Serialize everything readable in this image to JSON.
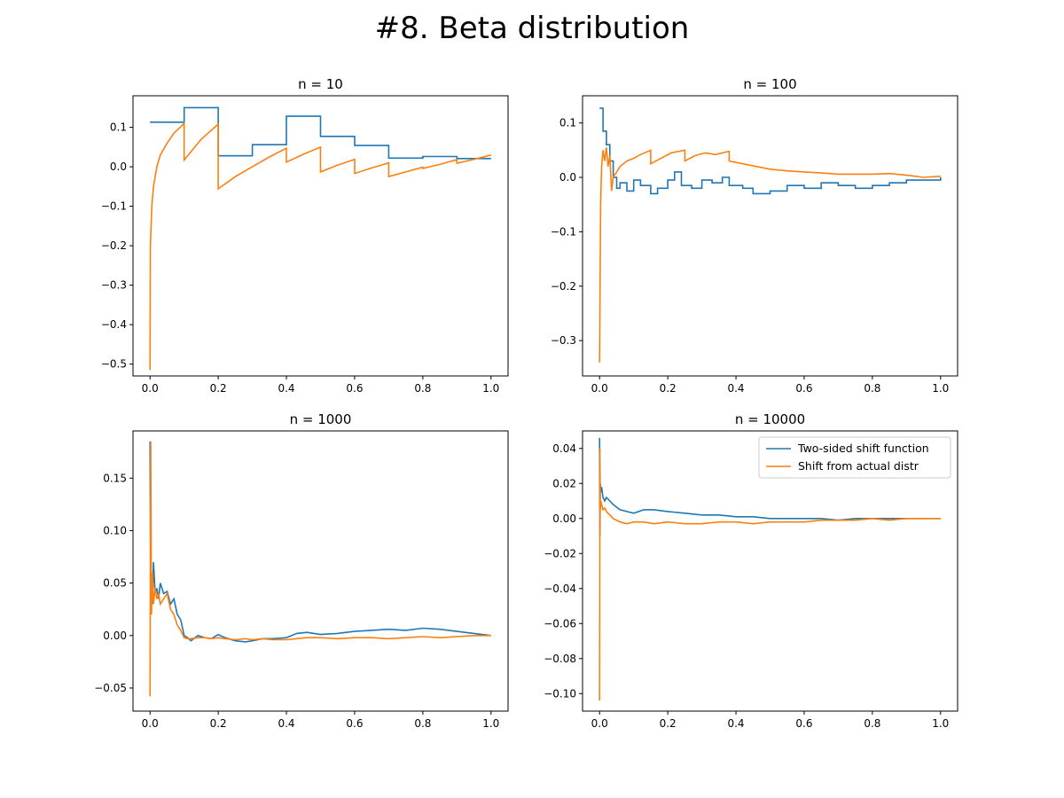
{
  "suptitle": "#8. Beta distribution",
  "colors": {
    "series1": "#1f77b4",
    "series2": "#ff7f0e"
  },
  "chart_data": [
    {
      "type": "line",
      "title": "n = 10",
      "xlim": [
        -0.05,
        1.05
      ],
      "ylim": [
        -0.53,
        0.18
      ],
      "xticks": [
        0,
        0.2,
        0.4,
        0.6,
        0.8,
        1.0
      ],
      "xtick_labels": [
        "0.0",
        "0.2",
        "0.4",
        "0.6",
        "0.8",
        "1.0"
      ],
      "yticks": [
        0.1,
        0,
        -0.1,
        -0.2,
        -0.3,
        -0.4,
        -0.5
      ],
      "ytick_labels": [
        "0.1",
        "0.0",
        "−0.1",
        "−0.2",
        "−0.3",
        "−0.4",
        "−0.5"
      ],
      "series": [
        {
          "style": "step",
          "x": [
            0,
            0.1,
            0.2,
            0.3,
            0.4,
            0.5,
            0.6,
            0.7,
            0.8,
            0.9,
            1.0
          ],
          "y": [
            0.113,
            0.15,
            0.028,
            0.056,
            0.128,
            0.077,
            0.054,
            0.022,
            0.026,
            0.021,
            0.021
          ]
        },
        {
          "style": "line",
          "x": [
            0,
            0.001,
            0.005,
            0.01,
            0.02,
            0.03,
            0.05,
            0.07,
            0.1,
            0.1,
            0.15,
            0.2,
            0.2,
            0.25,
            0.3,
            0.35,
            0.4,
            0.4,
            0.45,
            0.5,
            0.5,
            0.55,
            0.6,
            0.6,
            0.65,
            0.7,
            0.7,
            0.75,
            0.8,
            0.8,
            0.85,
            0.9,
            0.9,
            0.95,
            1.0
          ],
          "y": [
            -0.515,
            -0.2,
            -0.1,
            -0.05,
            0.0,
            0.03,
            0.06,
            0.085,
            0.11,
            0.017,
            0.07,
            0.108,
            -0.056,
            -0.025,
            0.0,
            0.025,
            0.047,
            0.012,
            0.032,
            0.05,
            -0.013,
            0.004,
            0.019,
            -0.017,
            -0.003,
            0.01,
            -0.025,
            -0.013,
            -0.001,
            -0.004,
            0.006,
            0.018,
            0.009,
            0.019,
            0.03
          ]
        }
      ]
    },
    {
      "type": "line",
      "title": "n = 100",
      "xlim": [
        -0.05,
        1.05
      ],
      "ylim": [
        -0.365,
        0.15
      ],
      "xticks": [
        0,
        0.2,
        0.4,
        0.6,
        0.8,
        1.0
      ],
      "xtick_labels": [
        "0.0",
        "0.2",
        "0.4",
        "0.6",
        "0.8",
        "1.0"
      ],
      "yticks": [
        0.1,
        0,
        -0.1,
        -0.2,
        -0.3
      ],
      "ytick_labels": [
        "0.1",
        "0.0",
        "−0.1",
        "−0.2",
        "−0.3"
      ],
      "series": [
        {
          "style": "step",
          "x": [
            0,
            0.01,
            0.02,
            0.03,
            0.04,
            0.05,
            0.06,
            0.08,
            0.1,
            0.12,
            0.15,
            0.17,
            0.2,
            0.22,
            0.24,
            0.27,
            0.3,
            0.33,
            0.36,
            0.38,
            0.42,
            0.45,
            0.5,
            0.55,
            0.6,
            0.65,
            0.7,
            0.75,
            0.8,
            0.85,
            0.9,
            0.95,
            1.0
          ],
          "y": [
            0.127,
            0.085,
            0.06,
            0.03,
            0.0,
            -0.02,
            -0.01,
            -0.025,
            -0.005,
            -0.015,
            -0.03,
            -0.02,
            -0.005,
            0.01,
            -0.015,
            -0.02,
            -0.005,
            -0.01,
            0.0,
            -0.015,
            -0.02,
            -0.03,
            -0.025,
            -0.015,
            -0.02,
            -0.01,
            -0.015,
            -0.02,
            -0.015,
            -0.01,
            -0.005,
            -0.005,
            0.0
          ]
        },
        {
          "style": "line",
          "x": [
            0,
            0.003,
            0.006,
            0.01,
            0.015,
            0.02,
            0.025,
            0.03,
            0.035,
            0.04,
            0.05,
            0.06,
            0.07,
            0.08,
            0.1,
            0.12,
            0.15,
            0.15,
            0.18,
            0.21,
            0.25,
            0.25,
            0.28,
            0.31,
            0.34,
            0.38,
            0.38,
            0.42,
            0.46,
            0.5,
            0.55,
            0.6,
            0.65,
            0.7,
            0.75,
            0.8,
            0.85,
            0.9,
            0.95,
            1.0
          ],
          "y": [
            -0.34,
            -0.05,
            0.02,
            0.05,
            0.03,
            0.055,
            0.02,
            0.04,
            -0.025,
            0.0,
            0.01,
            0.02,
            0.025,
            0.03,
            0.035,
            0.042,
            0.05,
            0.025,
            0.035,
            0.045,
            0.05,
            0.03,
            0.04,
            0.045,
            0.042,
            0.048,
            0.03,
            0.025,
            0.02,
            0.015,
            0.012,
            0.01,
            0.008,
            0.006,
            0.006,
            0.006,
            0.007,
            0.004,
            0.0,
            0.002
          ]
        }
      ]
    },
    {
      "type": "line",
      "title": "n = 1000",
      "xlim": [
        -0.05,
        1.05
      ],
      "ylim": [
        -0.072,
        0.195
      ],
      "xticks": [
        0,
        0.2,
        0.4,
        0.6,
        0.8,
        1.0
      ],
      "xtick_labels": [
        "0.0",
        "0.2",
        "0.4",
        "0.6",
        "0.8",
        "1.0"
      ],
      "yticks": [
        0.15,
        0.1,
        0.05,
        0,
        -0.05
      ],
      "ytick_labels": [
        "0.15",
        "0.10",
        "0.05",
        "0.00",
        "−0.05"
      ],
      "series": [
        {
          "style": "line",
          "x": [
            0,
            0.002,
            0.004,
            0.007,
            0.01,
            0.015,
            0.02,
            0.025,
            0.03,
            0.04,
            0.05,
            0.06,
            0.07,
            0.08,
            0.09,
            0.1,
            0.11,
            0.12,
            0.14,
            0.16,
            0.18,
            0.2,
            0.22,
            0.25,
            0.28,
            0.3,
            0.33,
            0.36,
            0.4,
            0.43,
            0.46,
            0.5,
            0.55,
            0.6,
            0.65,
            0.7,
            0.75,
            0.8,
            0.85,
            0.9,
            0.95,
            1.0
          ],
          "y": [
            0.185,
            0.02,
            0.05,
            0.03,
            0.07,
            0.04,
            0.045,
            0.035,
            0.05,
            0.04,
            0.042,
            0.03,
            0.035,
            0.02,
            0.015,
            0.0,
            -0.002,
            -0.005,
            0.0,
            -0.002,
            -0.003,
            0.001,
            -0.002,
            -0.005,
            -0.006,
            -0.005,
            -0.003,
            -0.003,
            -0.002,
            0.002,
            0.003,
            0.001,
            0.002,
            0.004,
            0.005,
            0.006,
            0.005,
            0.007,
            0.006,
            0.004,
            0.002,
            0.0
          ]
        },
        {
          "style": "line",
          "x": [
            0,
            0.002,
            0.004,
            0.007,
            0.01,
            0.015,
            0.02,
            0.025,
            0.03,
            0.04,
            0.05,
            0.06,
            0.07,
            0.08,
            0.09,
            0.1,
            0.11,
            0.12,
            0.14,
            0.16,
            0.18,
            0.2,
            0.22,
            0.25,
            0.28,
            0.3,
            0.33,
            0.36,
            0.4,
            0.43,
            0.46,
            0.5,
            0.55,
            0.6,
            0.65,
            0.7,
            0.75,
            0.8,
            0.85,
            0.9,
            0.95,
            1.0
          ],
          "y": [
            -0.058,
            0.185,
            0.02,
            0.06,
            0.03,
            0.045,
            0.035,
            0.04,
            0.03,
            0.035,
            0.04,
            0.025,
            0.02,
            0.01,
            0.005,
            -0.002,
            -0.003,
            -0.003,
            -0.002,
            -0.002,
            -0.003,
            -0.002,
            -0.003,
            -0.004,
            -0.003,
            -0.004,
            -0.003,
            -0.004,
            -0.004,
            -0.003,
            -0.002,
            -0.002,
            -0.003,
            -0.002,
            -0.002,
            -0.003,
            -0.002,
            -0.001,
            -0.002,
            -0.001,
            0.0,
            0.0
          ]
        }
      ]
    },
    {
      "type": "line",
      "title": "n = 10000",
      "xlim": [
        -0.05,
        1.05
      ],
      "ylim": [
        -0.11,
        0.05
      ],
      "xticks": [
        0,
        0.2,
        0.4,
        0.6,
        0.8,
        1.0
      ],
      "xtick_labels": [
        "0.0",
        "0.2",
        "0.4",
        "0.6",
        "0.8",
        "1.0"
      ],
      "yticks": [
        0.04,
        0.02,
        0,
        -0.02,
        -0.04,
        -0.06,
        -0.08,
        -0.1
      ],
      "ytick_labels": [
        "0.04",
        "0.02",
        "0.00",
        "−0.02",
        "−0.04",
        "−0.06",
        "−0.08",
        "−0.10"
      ],
      "legend": {
        "position": "upper right",
        "entries": [
          "Two-sided shift function",
          "Shift from actual distr"
        ]
      },
      "series": [
        {
          "name": "Two-sided shift function",
          "style": "line",
          "x": [
            0,
            0.001,
            0.002,
            0.004,
            0.006,
            0.01,
            0.015,
            0.02,
            0.03,
            0.04,
            0.06,
            0.08,
            0.1,
            0.13,
            0.16,
            0.2,
            0.25,
            0.3,
            0.35,
            0.4,
            0.45,
            0.5,
            0.55,
            0.6,
            0.65,
            0.7,
            0.75,
            0.8,
            0.85,
            0.9,
            0.95,
            1.0
          ],
          "y": [
            0.046,
            -0.01,
            0.02,
            0.015,
            0.018,
            0.012,
            0.01,
            0.012,
            0.01,
            0.008,
            0.005,
            0.004,
            0.003,
            0.005,
            0.005,
            0.004,
            0.003,
            0.002,
            0.002,
            0.001,
            0.001,
            0.0,
            0.0,
            0.0,
            0.0,
            -0.001,
            0.0,
            0.0,
            0.0,
            0.0,
            0.0,
            0.0
          ]
        },
        {
          "name": "Shift from actual distr",
          "style": "line",
          "x": [
            0,
            0.001,
            0.002,
            0.004,
            0.006,
            0.01,
            0.015,
            0.02,
            0.03,
            0.04,
            0.06,
            0.08,
            0.1,
            0.13,
            0.16,
            0.2,
            0.25,
            0.3,
            0.35,
            0.4,
            0.45,
            0.5,
            0.55,
            0.6,
            0.65,
            0.7,
            0.75,
            0.8,
            0.85,
            0.9,
            0.95,
            1.0
          ],
          "y": [
            -0.104,
            0.04,
            0.005,
            0.01,
            0.008,
            0.005,
            0.006,
            0.004,
            0.002,
            0.0,
            -0.002,
            -0.003,
            -0.002,
            -0.002,
            -0.003,
            -0.002,
            -0.003,
            -0.003,
            -0.002,
            -0.002,
            -0.003,
            -0.002,
            -0.002,
            -0.002,
            -0.001,
            -0.001,
            -0.001,
            0.0,
            -0.001,
            0.0,
            0.0,
            0.0
          ]
        }
      ]
    }
  ]
}
